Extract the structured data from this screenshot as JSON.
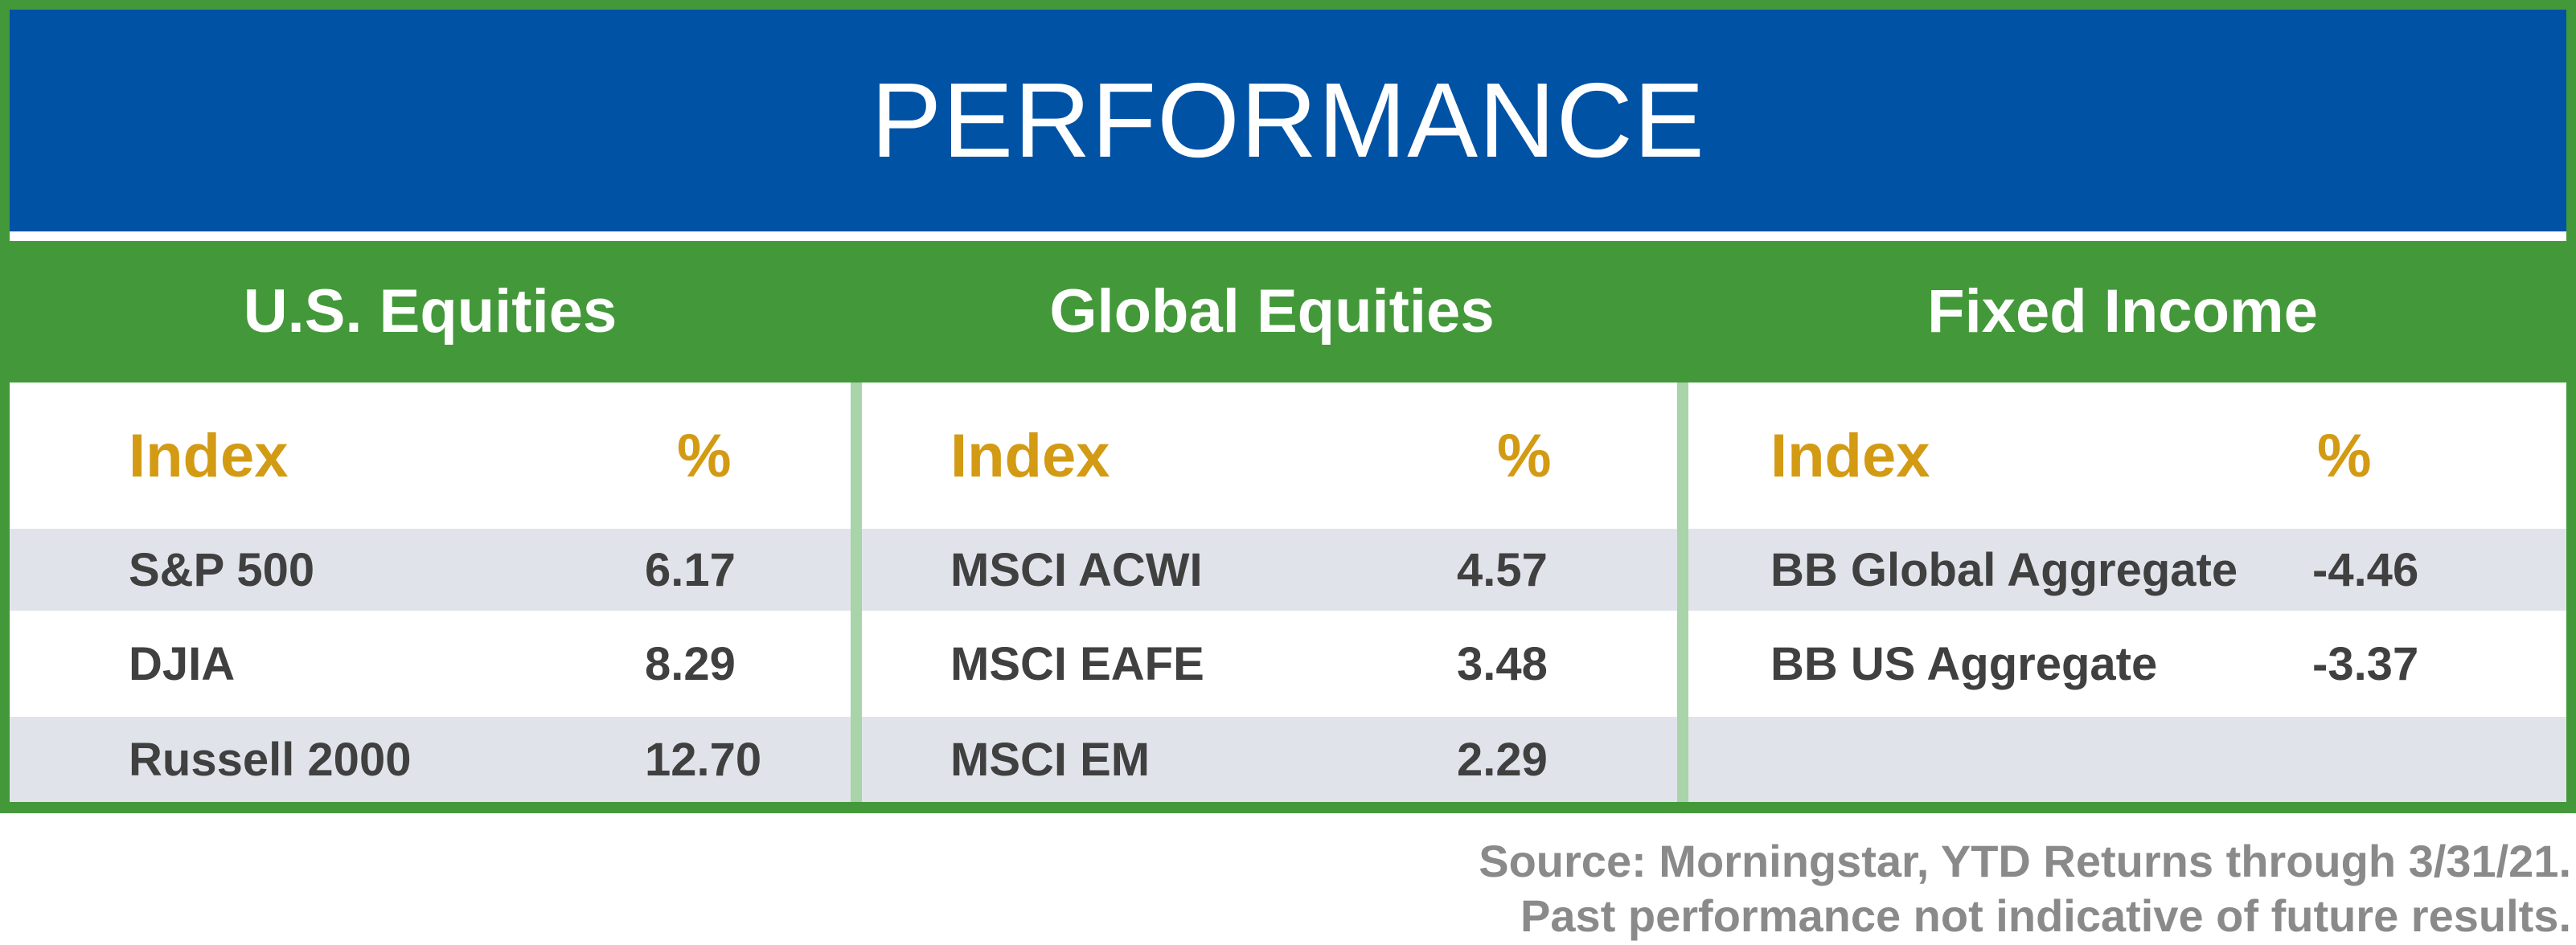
{
  "title": "PERFORMANCE",
  "sections": [
    {
      "heading": "U.S. Equities",
      "col_index": "Index",
      "col_pct": "%",
      "rows": [
        {
          "name": "S&P 500",
          "value": "6.17"
        },
        {
          "name": "DJIA",
          "value": "8.29"
        },
        {
          "name": "Russell 2000",
          "value": "12.70"
        }
      ]
    },
    {
      "heading": "Global Equities",
      "col_index": "Index",
      "col_pct": "%",
      "rows": [
        {
          "name": "MSCI ACWI",
          "value": "4.57"
        },
        {
          "name": "MSCI EAFE",
          "value": "3.48"
        },
        {
          "name": "MSCI EM",
          "value": "2.29"
        }
      ]
    },
    {
      "heading": "Fixed Income",
      "col_index": "Index",
      "col_pct": "%",
      "rows": [
        {
          "name": "BB Global Aggregate",
          "value": "-4.46"
        },
        {
          "name": "BB US Aggregate",
          "value": "-3.37"
        },
        {
          "name": "",
          "value": ""
        }
      ]
    }
  ],
  "footnote": {
    "line1": "Source: Morningstar, YTD Returns through 3/31/21.",
    "line2": "Past performance not indicative of future results."
  },
  "colors": {
    "title_bg": "#0052a4",
    "frame_green": "#43983a",
    "header_gold": "#d39a14",
    "row_shade": "#e0e4ea",
    "separator": "#a9d3a8"
  }
}
